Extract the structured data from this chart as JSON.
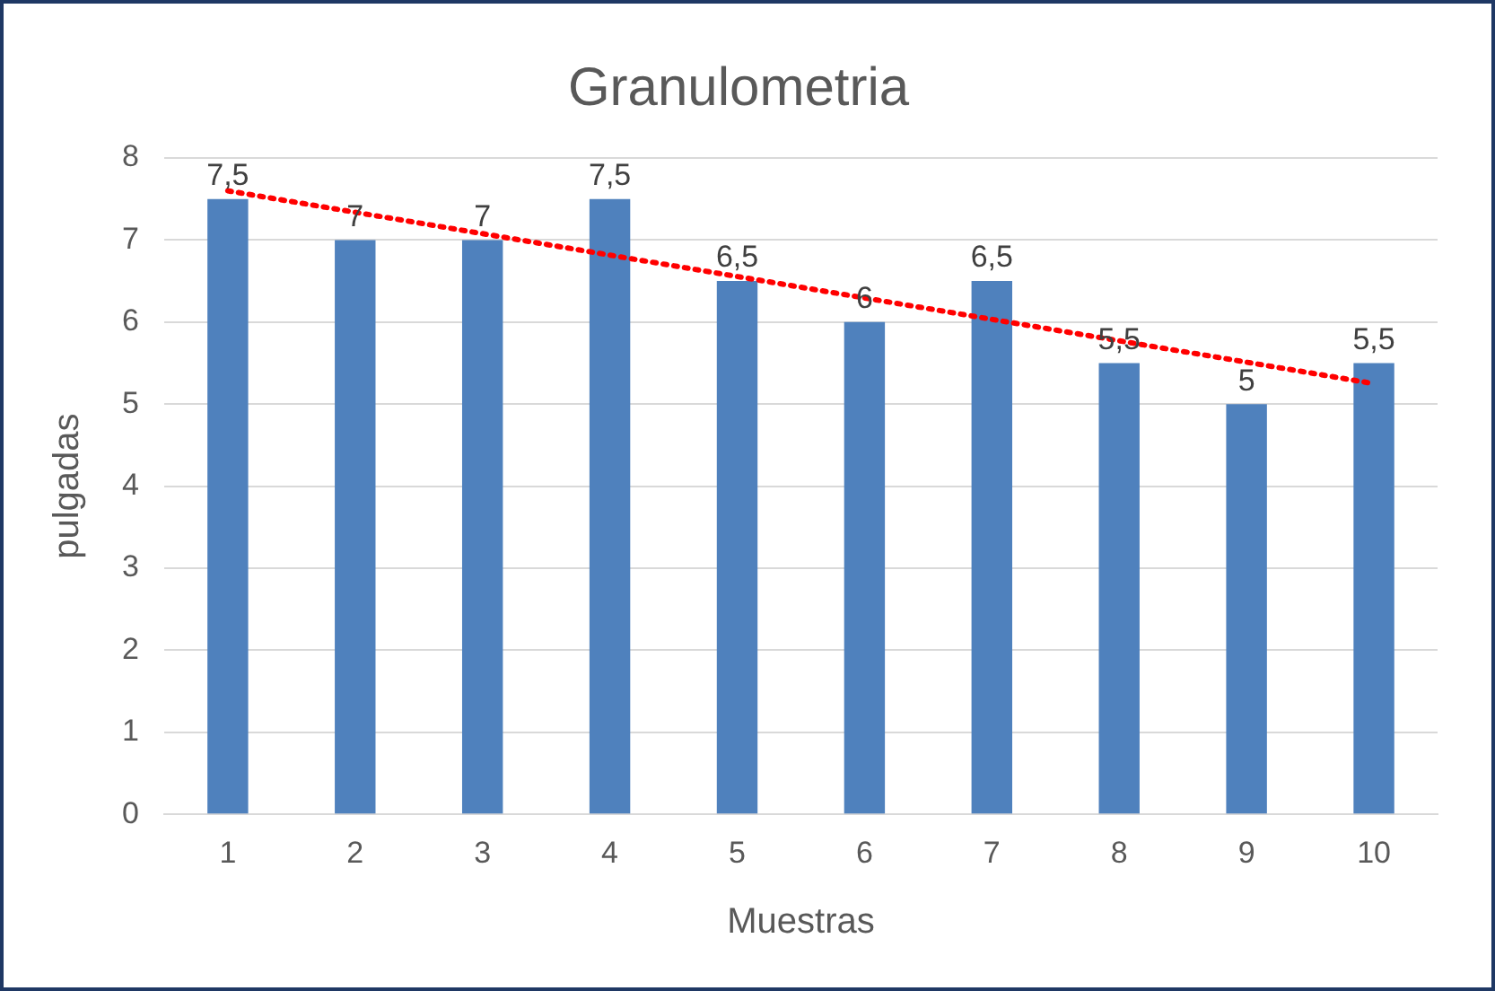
{
  "chart_data": {
    "type": "bar",
    "title": "Granulometria",
    "xlabel": "Muestras",
    "ylabel": "pulgadas",
    "categories": [
      "1",
      "2",
      "3",
      "4",
      "5",
      "6",
      "7",
      "8",
      "9",
      "10"
    ],
    "series": [
      {
        "color": "#4f81bd",
        "values": [
          7.5,
          7,
          7,
          7.5,
          6.5,
          6,
          6.5,
          5.5,
          5,
          5.5
        ],
        "value_labels": [
          "7,5",
          "7",
          "7",
          "7,5",
          "6,5",
          "6",
          "6,5",
          "5,5",
          "5",
          "5,5"
        ]
      },
      {
        "type": "line",
        "color": "#ff0000",
        "x": [
          "1",
          "10"
        ],
        "values": [
          7.6,
          5.25
        ],
        "line_style": "dotted",
        "marker": "none"
      }
    ],
    "ylim": [
      0,
      8
    ],
    "yticks": [
      0,
      1,
      2,
      3,
      4,
      5,
      6,
      7,
      8
    ],
    "grid": "y",
    "legend": false
  }
}
